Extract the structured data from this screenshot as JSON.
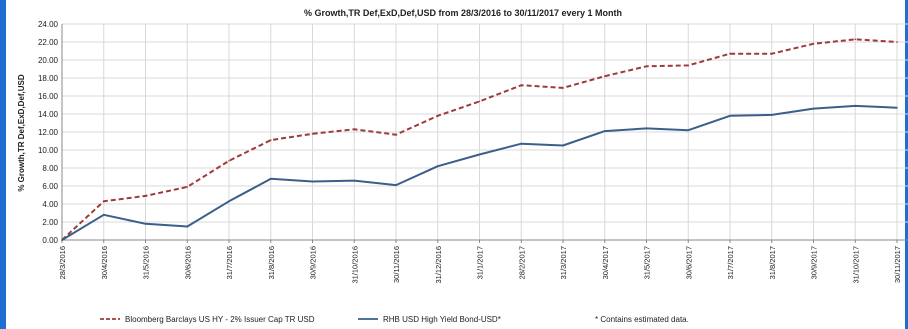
{
  "chart_data": {
    "type": "line",
    "title": "% Growth,TR Def,ExD,Def,USD from 28/3/2016 to 30/11/2017 every 1 Month",
    "xlabel": "",
    "ylabel": "% Growth,TR Def,ExD,Def,USD",
    "ylim": [
      0,
      24
    ],
    "yticks": [
      "0.00",
      "2.00",
      "4.00",
      "6.00",
      "8.00",
      "10.00",
      "12.00",
      "14.00",
      "16.00",
      "18.00",
      "20.00",
      "22.00",
      "24.00"
    ],
    "grid": true,
    "legend_position": "bottom",
    "categories": [
      "28/3/2016",
      "30/4/2016",
      "31/5/2016",
      "30/6/2016",
      "31/7/2016",
      "31/8/2016",
      "30/9/2016",
      "31/10/2016",
      "30/11/2016",
      "31/12/2016",
      "31/1/2017",
      "28/2/2017",
      "31/3/2017",
      "30/4/2017",
      "31/5/2017",
      "30/6/2017",
      "31/7/2017",
      "31/8/2017",
      "30/9/2017",
      "31/10/2017",
      "30/11/2017"
    ],
    "series": [
      {
        "name": "Bloomberg Barclays US HY - 2% Issuer Cap TR USD",
        "color": "#a0393a",
        "dash": true,
        "values": [
          0.0,
          4.3,
          4.9,
          5.9,
          8.8,
          11.1,
          11.8,
          12.3,
          11.7,
          13.8,
          15.4,
          17.2,
          16.9,
          18.2,
          19.3,
          19.4,
          20.7,
          20.7,
          21.8,
          22.3,
          22.0
        ]
      },
      {
        "name": "RHB USD High Yield Bond-USD*",
        "color": "#3a5f8a",
        "dash": false,
        "values": [
          0.0,
          2.8,
          1.8,
          1.5,
          4.3,
          6.8,
          6.5,
          6.6,
          6.1,
          8.2,
          9.5,
          10.7,
          10.5,
          12.1,
          12.4,
          12.2,
          13.8,
          13.9,
          14.6,
          14.9,
          14.7
        ]
      }
    ],
    "note": "*  Contains estimated data."
  }
}
